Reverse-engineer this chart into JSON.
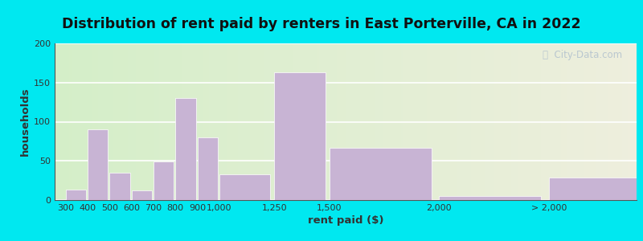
{
  "title": "Distribution of rent paid by renters in East Porterville, CA in 2022",
  "xlabel": "rent paid ($)",
  "ylabel": "households",
  "bar_positions": [
    300,
    400,
    500,
    600,
    700,
    800,
    900,
    1000,
    1250,
    1500,
    2000,
    2500
  ],
  "bar_widths": [
    100,
    100,
    100,
    100,
    100,
    100,
    100,
    250,
    250,
    500,
    500,
    500
  ],
  "bar_heights": [
    13,
    90,
    35,
    12,
    49,
    130,
    80,
    33,
    163,
    67,
    5,
    29
  ],
  "bar_color": "#c8b4d4",
  "ylim": [
    0,
    200
  ],
  "yticks": [
    0,
    50,
    100,
    150,
    200
  ],
  "bg_outer": "#00e8f0",
  "bg_inner_left": "#d4eec8",
  "bg_inner_right": "#eeeedd",
  "grid_color": "#ffffff",
  "title_fontsize": 12.5,
  "axis_label_fontsize": 9.5,
  "tick_fontsize": 8,
  "watermark_text": "City-Data.com",
  "xtick_positions": [
    300,
    400,
    500,
    600,
    700,
    800,
    900,
    1000,
    1250,
    1500,
    2000,
    2500
  ],
  "xtick_labels": [
    "300",
    "400",
    "500",
    "600",
    "700",
    "800",
    "900",
    "1,000",
    "1,250",
    "1,500",
    "2,000",
    "> 2,000"
  ],
  "xlim": [
    250,
    2900
  ]
}
